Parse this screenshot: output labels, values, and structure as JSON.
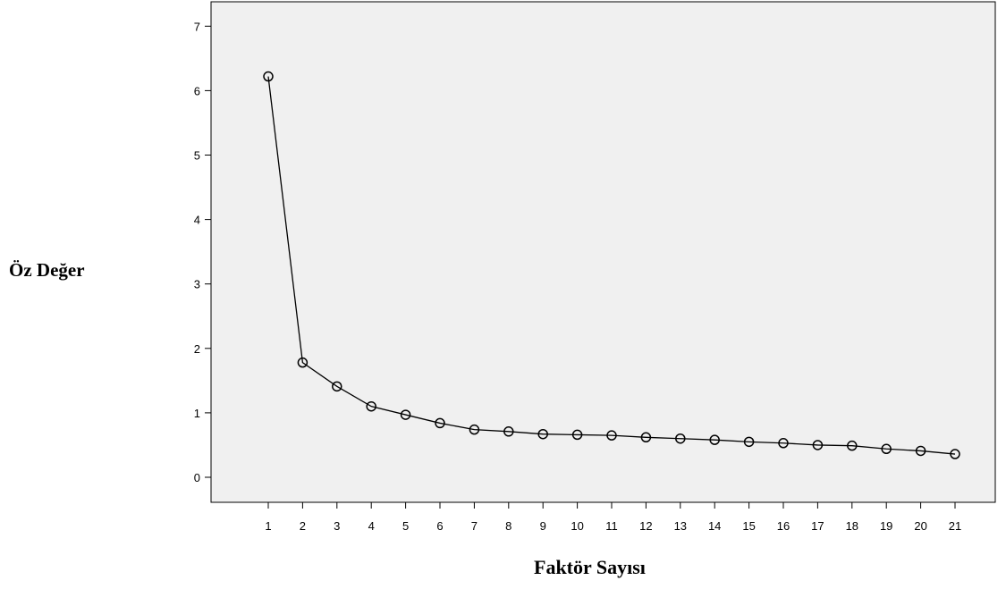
{
  "chart_data": {
    "type": "line",
    "title": "",
    "xlabel": "Faktör Sayısı",
    "ylabel": "Öz Değer",
    "x": [
      1,
      2,
      3,
      4,
      5,
      6,
      7,
      8,
      9,
      10,
      11,
      12,
      13,
      14,
      15,
      16,
      17,
      18,
      19,
      20,
      21
    ],
    "y": [
      6.22,
      1.78,
      1.41,
      1.1,
      0.97,
      0.84,
      0.74,
      0.71,
      0.67,
      0.66,
      0.65,
      0.62,
      0.6,
      0.58,
      0.55,
      0.53,
      0.5,
      0.49,
      0.44,
      0.41,
      0.36
    ],
    "xticks": [
      "1",
      "2",
      "3",
      "4",
      "5",
      "6",
      "7",
      "8",
      "9",
      "10",
      "11",
      "12",
      "13",
      "14",
      "15",
      "16",
      "17",
      "18",
      "19",
      "20",
      "21"
    ],
    "yticks": [
      "0",
      "1",
      "2",
      "3",
      "4",
      "5",
      "6",
      "7"
    ],
    "ylim": [
      0,
      7
    ],
    "xlim": [
      0,
      22
    ],
    "grid": false,
    "legend": "none",
    "colors": {
      "plot_background": "#f0f0f0",
      "line": "#000000",
      "marker": "#000000"
    }
  }
}
